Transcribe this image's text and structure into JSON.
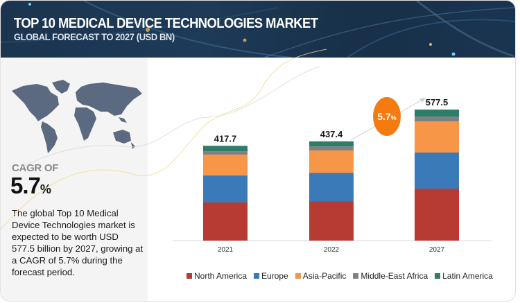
{
  "header": {
    "title": "TOP 10 MEDICAL DEVICE TECHNOLOGIES MARKET",
    "subtitle": "GLOBAL FORECAST TO 2027 (USD BN)"
  },
  "sidebar": {
    "map_icon": "world-map-icon",
    "cagr_label": "CAGR OF",
    "cagr_value": "5.7",
    "cagr_unit": "%",
    "description": "The global Top 10 Medical Device Technologies market is expected to be worth USD 577.5 billion by 2027, growing at a CAGR of 5.7% during the forecast period."
  },
  "callout": {
    "value": "5.7",
    "unit": "%",
    "color": "#f47b0f"
  },
  "chart_data": {
    "type": "bar",
    "stacked": true,
    "title": "TOP 10 MEDICAL DEVICE TECHNOLOGIES MARKET",
    "subtitle": "GLOBAL FORECAST TO 2027 (USD BN)",
    "xlabel": "",
    "ylabel": "",
    "categories": [
      "2021",
      "2022",
      "2027"
    ],
    "totals": [
      "417.7",
      "437.4",
      "577.5"
    ],
    "total_values": [
      417.7,
      437.4,
      577.5
    ],
    "ylim": [
      0,
      577.5
    ],
    "grid": false,
    "legend_position": "bottom",
    "series": [
      {
        "name": "North America",
        "color": "#b73b33",
        "values": [
          168,
          174,
          229
        ]
      },
      {
        "name": "Europe",
        "color": "#3a7ab8",
        "values": [
          119,
          125,
          159
        ]
      },
      {
        "name": "Asia-Pacific",
        "color": "#f79646",
        "values": [
          92,
          98,
          137
        ]
      },
      {
        "name": "Middle-East Africa",
        "color": "#808080",
        "values": [
          15,
          18,
          21
        ]
      },
      {
        "name": "Latin America",
        "color": "#2e7d6b",
        "values": [
          23.7,
          22.4,
          31.5
        ]
      }
    ]
  }
}
